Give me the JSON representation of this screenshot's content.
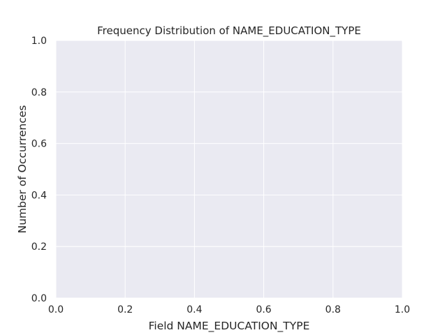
{
  "chart_data": {
    "type": "bar",
    "title": "Frequency Distribution of NAME_EDUCATION_TYPE",
    "xlabel": "Field NAME_EDUCATION_TYPE",
    "ylabel": "Number of Occurrences",
    "categories": [],
    "values": [],
    "xlim": [
      0.0,
      1.0
    ],
    "ylim": [
      0.0,
      1.0
    ],
    "x_ticks": [
      "0.0",
      "0.2",
      "0.4",
      "0.6",
      "0.8",
      "1.0"
    ],
    "y_ticks": [
      "0.0",
      "0.2",
      "0.4",
      "0.6",
      "0.8",
      "1.0"
    ],
    "grid": true,
    "legend": "none"
  },
  "colors": {
    "plot_background": "#EAEAF2",
    "grid": "#FFFFFF",
    "text": "#262626"
  }
}
